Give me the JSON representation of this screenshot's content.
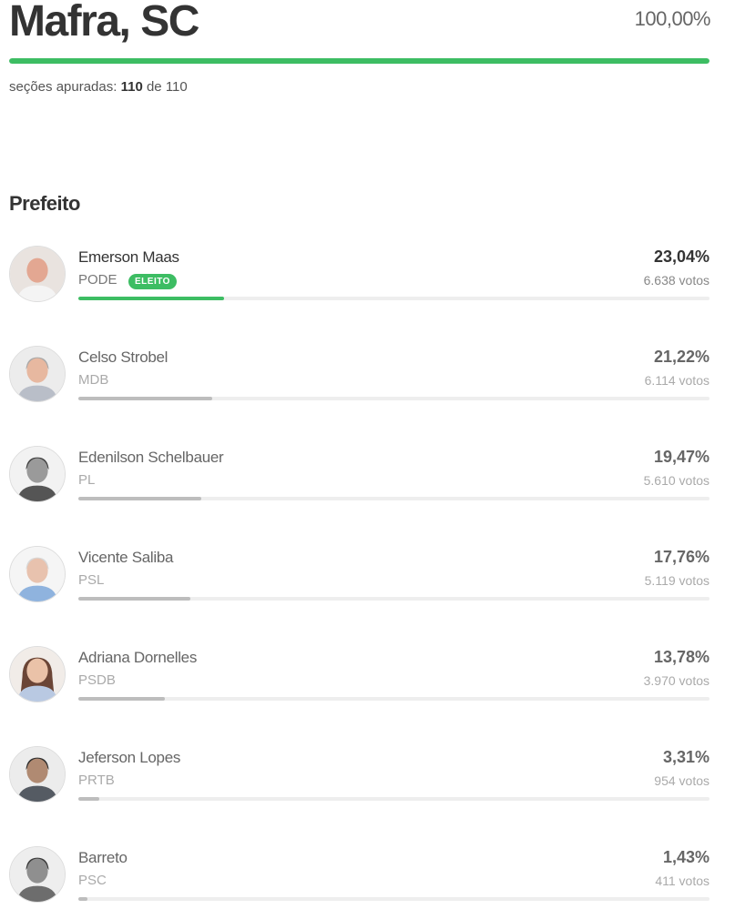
{
  "header": {
    "city": "Mafra, SC",
    "overall_percent_label": "100,00%",
    "overall_percent": 100,
    "sections_prefix": "seções apuradas:",
    "sections_counted": "110",
    "sections_mid": "de",
    "sections_total": "110"
  },
  "race": {
    "office": "Prefeito",
    "elected_label": "ELEITO",
    "colors": {
      "elected": "#3dbd63",
      "other": "#bdbdbd",
      "track": "#eeeeee"
    },
    "candidates": [
      {
        "name": "Emerson Maas",
        "party": "PODE",
        "pct_label": "23,04%",
        "pct": 23.04,
        "votes": "6.638 votos",
        "elected": true,
        "photo": "bald-man-icon"
      },
      {
        "name": "Celso Strobel",
        "party": "MDB",
        "pct_label": "21,22%",
        "pct": 21.22,
        "votes": "6.114 votos",
        "elected": false,
        "photo": "gray-hair-man-icon"
      },
      {
        "name": "Edenilson Schelbauer",
        "party": "PL",
        "pct_label": "19,47%",
        "pct": 19.47,
        "votes": "5.610 votos",
        "elected": false,
        "photo": "man-suit-icon"
      },
      {
        "name": "Vicente Saliba",
        "party": "PSL",
        "pct_label": "17,76%",
        "pct": 17.76,
        "votes": "5.119 votos",
        "elected": false,
        "photo": "older-man-icon"
      },
      {
        "name": "Adriana Dornelles",
        "party": "PSDB",
        "pct_label": "13,78%",
        "pct": 13.78,
        "votes": "3.970 votos",
        "elected": false,
        "photo": "woman-icon"
      },
      {
        "name": "Jeferson Lopes",
        "party": "PRTB",
        "pct_label": "3,31%",
        "pct": 3.31,
        "votes": "954 votos",
        "elected": false,
        "photo": "young-man-icon"
      },
      {
        "name": "Barreto",
        "party": "PSC",
        "pct_label": "1,43%",
        "pct": 1.43,
        "votes": "411 votos",
        "elected": false,
        "photo": "man-icon"
      }
    ]
  }
}
